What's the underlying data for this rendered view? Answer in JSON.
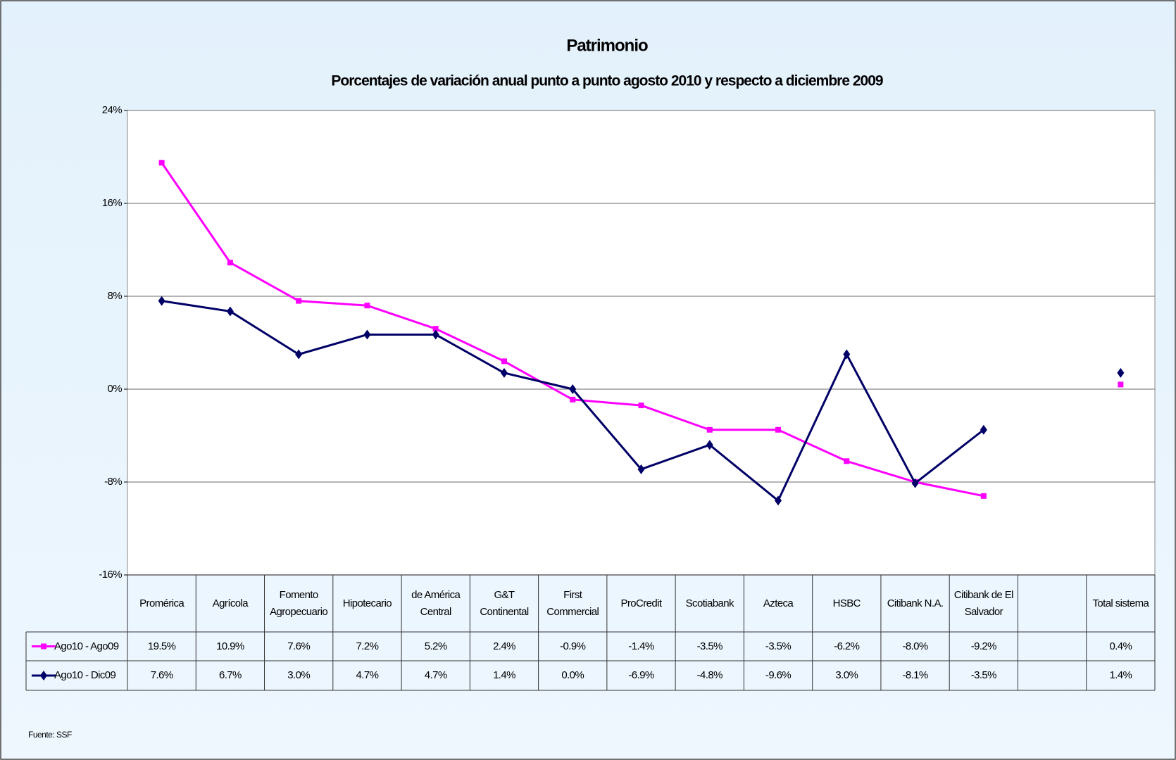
{
  "chart_data": {
    "type": "line",
    "title": "Patrimonio",
    "subtitle": "Porcentajes de variación anual punto a punto agosto 2010 y respecto a diciembre 2009",
    "categories": [
      "Promérica",
      "Agrícola",
      "Fomento Agropecuario",
      "Hipotecario",
      "de América Central",
      "G&T Continental",
      "First Commercial",
      "ProCredit",
      "Scotiabank",
      "Azteca",
      "HSBC",
      "Citibank N.A.",
      "Citibank de El Salvador",
      null,
      "Total sistema"
    ],
    "series": [
      {
        "name": "Ago10 - Ago09",
        "color": "#ff00ff",
        "marker": "square",
        "values": [
          19.5,
          10.9,
          7.6,
          7.2,
          5.2,
          2.4,
          -0.9,
          -1.4,
          -3.5,
          -3.5,
          -6.2,
          -8.0,
          -9.2,
          null,
          0.4
        ],
        "value_labels": [
          "19.5%",
          "10.9%",
          "7.6%",
          "7.2%",
          "5.2%",
          "2.4%",
          "-0.9%",
          "-1.4%",
          "-3.5%",
          "-3.5%",
          "-6.2%",
          "-8.0%",
          "-9.2%",
          null,
          "0.4%"
        ]
      },
      {
        "name": "Ago10 - Dic09",
        "color": "#000066",
        "marker": "diamond",
        "values": [
          7.6,
          6.7,
          3.0,
          4.7,
          4.7,
          1.4,
          0.0,
          -6.9,
          -4.8,
          -9.6,
          3.0,
          -8.1,
          -3.5,
          null,
          1.4
        ],
        "value_labels": [
          "7.6%",
          "6.7%",
          "3.0%",
          "4.7%",
          "4.7%",
          "1.4%",
          "0.0%",
          "-6.9%",
          "-4.8%",
          "-9.6%",
          "3.0%",
          "-8.1%",
          "-3.5%",
          null,
          "1.4%"
        ]
      }
    ],
    "ylim": [
      -16,
      24
    ],
    "yticks": [
      {
        "value": -16,
        "label": "-16%"
      },
      {
        "value": -8,
        "label": "-8%"
      },
      {
        "value": 0,
        "label": "0%"
      },
      {
        "value": 8,
        "label": "8%"
      },
      {
        "value": 16,
        "label": "16%"
      },
      {
        "value": 24,
        "label": "24%"
      }
    ],
    "grid": true,
    "source": "Fuente: SSF"
  }
}
